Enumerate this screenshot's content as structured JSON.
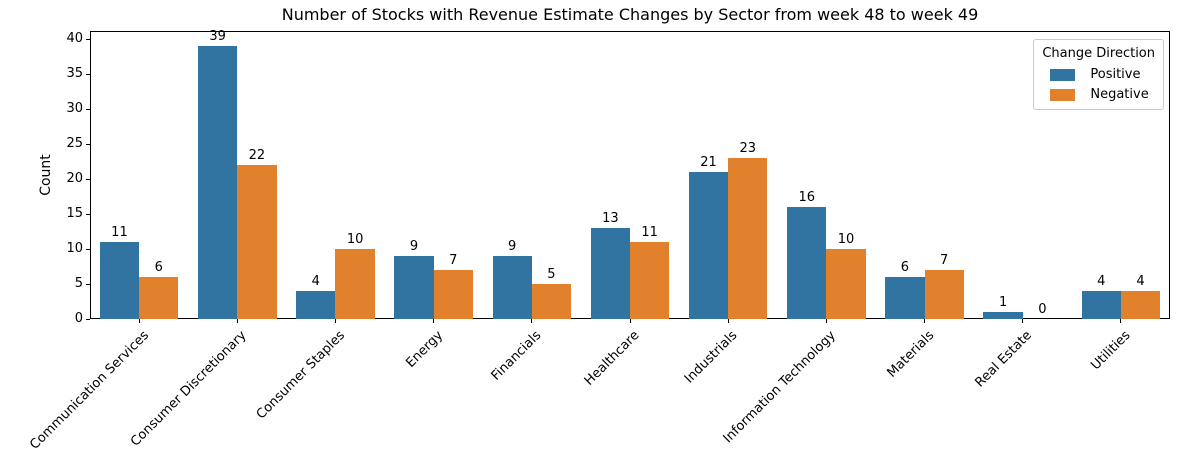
{
  "chart_data": {
    "type": "bar",
    "title": "Number of Stocks with Revenue Estimate Changes by Sector from week 48 to week 49",
    "xlabel": "",
    "ylabel": "Count",
    "categories": [
      "Communication Services",
      "Consumer Discretionary",
      "Consumer Staples",
      "Energy",
      "Financials",
      "Healthcare",
      "Industrials",
      "Information Technology",
      "Materials",
      "Real Estate",
      "Utilities"
    ],
    "series": [
      {
        "name": "Positive",
        "color": "#3274A1",
        "values": [
          11,
          39,
          4,
          9,
          9,
          13,
          21,
          16,
          6,
          1,
          4
        ]
      },
      {
        "name": "Negative",
        "color": "#E1812C",
        "values": [
          6,
          22,
          10,
          7,
          5,
          11,
          23,
          10,
          7,
          0,
          4
        ]
      }
    ],
    "ylim": [
      0,
      41.2
    ],
    "yticks": [
      0,
      5,
      10,
      15,
      20,
      25,
      30,
      35,
      40
    ],
    "bar_labels": true,
    "grid": false,
    "legend": {
      "title": "Change Direction",
      "position": "upper right",
      "items": [
        {
          "label": "Positive",
          "color": "#3274A1"
        },
        {
          "label": "Negative",
          "color": "#E1812C"
        }
      ]
    },
    "xtick_rotation_deg": 45
  }
}
